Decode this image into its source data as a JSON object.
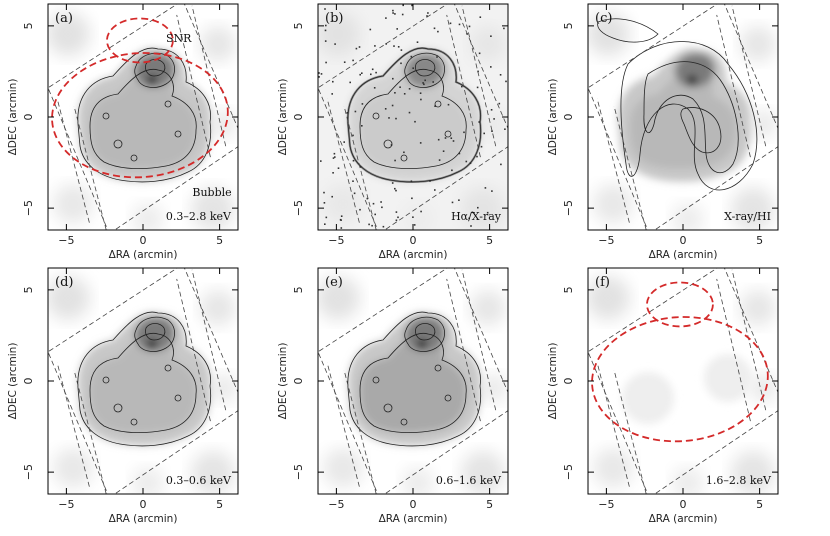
{
  "figure": {
    "xlabel": "ΔRA (arcmin)",
    "ylabel": "ΔDEC (arcmin)",
    "x_ticks": [
      "−5",
      "0",
      "5"
    ],
    "y_ticks": [
      "5",
      "0",
      "−5"
    ],
    "panels": [
      {
        "id": "a",
        "letter": "(a)",
        "caption": "0.3–2.8 keV",
        "labels": [
          "SNR",
          "Bubble"
        ],
        "style": "soft",
        "contours": "xray",
        "ellipses": true
      },
      {
        "id": "b",
        "letter": "(b)",
        "caption": "Hα/X-ray",
        "labels": [],
        "style": "halpha",
        "contours": "xray",
        "ellipses": false
      },
      {
        "id": "c",
        "letter": "(c)",
        "caption": "X-ray/HI",
        "labels": [],
        "style": "soft",
        "contours": "hi",
        "ellipses": false
      },
      {
        "id": "d",
        "letter": "(d)",
        "caption": "0.3–0.6 keV",
        "labels": [],
        "style": "soft",
        "contours": "xray",
        "ellipses": false
      },
      {
        "id": "e",
        "letter": "(e)",
        "caption": "0.6–1.6 keV",
        "labels": [],
        "style": "soft",
        "contours": "xray",
        "ellipses": false
      },
      {
        "id": "f",
        "letter": "(f)",
        "caption": "1.6–2.8 keV",
        "labels": [],
        "style": "faint",
        "contours": "none",
        "ellipses": true
      }
    ],
    "colors": {
      "ellipse": "#d42a2a",
      "contour": "#222222",
      "frame": "#000000",
      "fov": "#444444"
    }
  }
}
